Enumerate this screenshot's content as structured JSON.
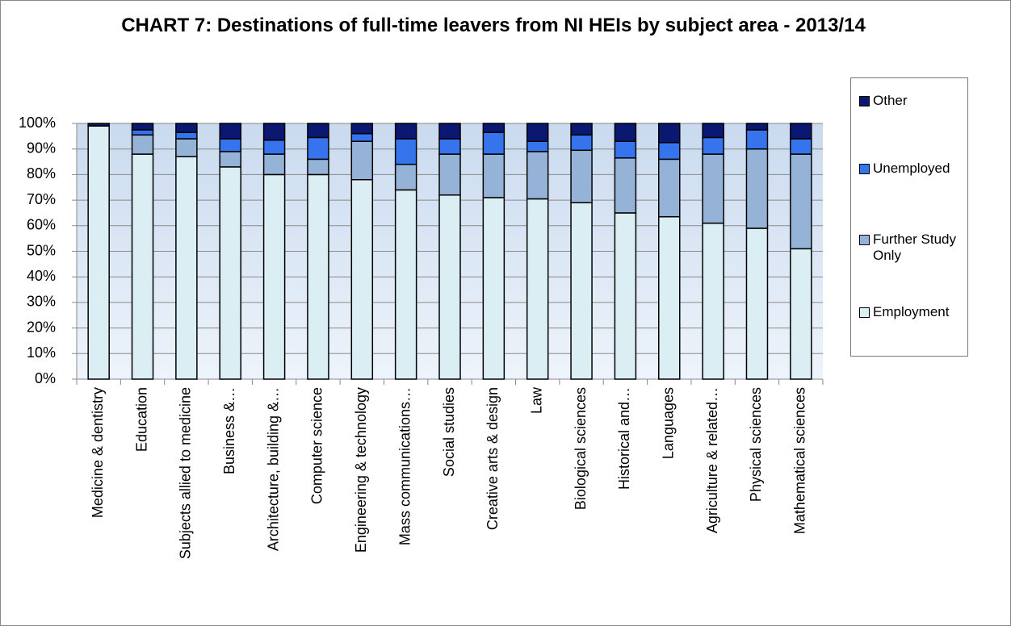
{
  "chart_data": {
    "type": "stacked_bar",
    "title": "CHART 7: Destinations of full-time leavers from NI HEIs by subject area - 2013/14",
    "categories": [
      "Medicine & dentistry",
      "Education",
      "Subjects allied to medicine",
      "Business &…",
      "Architecture, building &…",
      "Computer science",
      "Engineering & technology",
      "Mass communications…",
      "Social studies",
      "Creative arts & design",
      "Law",
      "Biological sciences",
      "Historical and…",
      "Languages",
      "Agriculture & related…",
      "Physical sciences",
      "Mathematical sciences"
    ],
    "series": [
      {
        "name": "Employment",
        "color": "#daeef3",
        "values": [
          99,
          88,
          87,
          83,
          80,
          80,
          78,
          74,
          72,
          71,
          70.5,
          69,
          65,
          63.5,
          61,
          59,
          51
        ]
      },
      {
        "name": "Further Study Only",
        "color": "#95b3d7",
        "values": [
          0,
          7.5,
          7,
          6,
          8,
          6,
          15,
          10,
          16,
          17,
          18.5,
          20.5,
          21.5,
          22.5,
          27,
          31,
          37
        ]
      },
      {
        "name": "Unemployed",
        "color": "#3574ec",
        "values": [
          0,
          2,
          2.5,
          5,
          5.5,
          8.5,
          3,
          10,
          6,
          8.5,
          4,
          6,
          6.5,
          6.5,
          6.5,
          7.5,
          6
        ]
      },
      {
        "name": "Other",
        "color": "#0b1872",
        "values": [
          1,
          2.5,
          3.5,
          6,
          6.5,
          5.5,
          4,
          6,
          6,
          3.5,
          7,
          4.5,
          7,
          7.5,
          5.5,
          2.5,
          6
        ]
      }
    ],
    "ylim": [
      0,
      100
    ],
    "yticks": [
      {
        "value": 0,
        "label": "0%"
      },
      {
        "value": 10,
        "label": "10%"
      },
      {
        "value": 20,
        "label": "20%"
      },
      {
        "value": 30,
        "label": "30%"
      },
      {
        "value": 40,
        "label": "40%"
      },
      {
        "value": 50,
        "label": "50%"
      },
      {
        "value": 60,
        "label": "60%"
      },
      {
        "value": 70,
        "label": "70%"
      },
      {
        "value": 80,
        "label": "80%"
      },
      {
        "value": 90,
        "label": "90%"
      },
      {
        "value": 100,
        "label": "100%"
      }
    ],
    "grid": true,
    "legend": "right"
  }
}
